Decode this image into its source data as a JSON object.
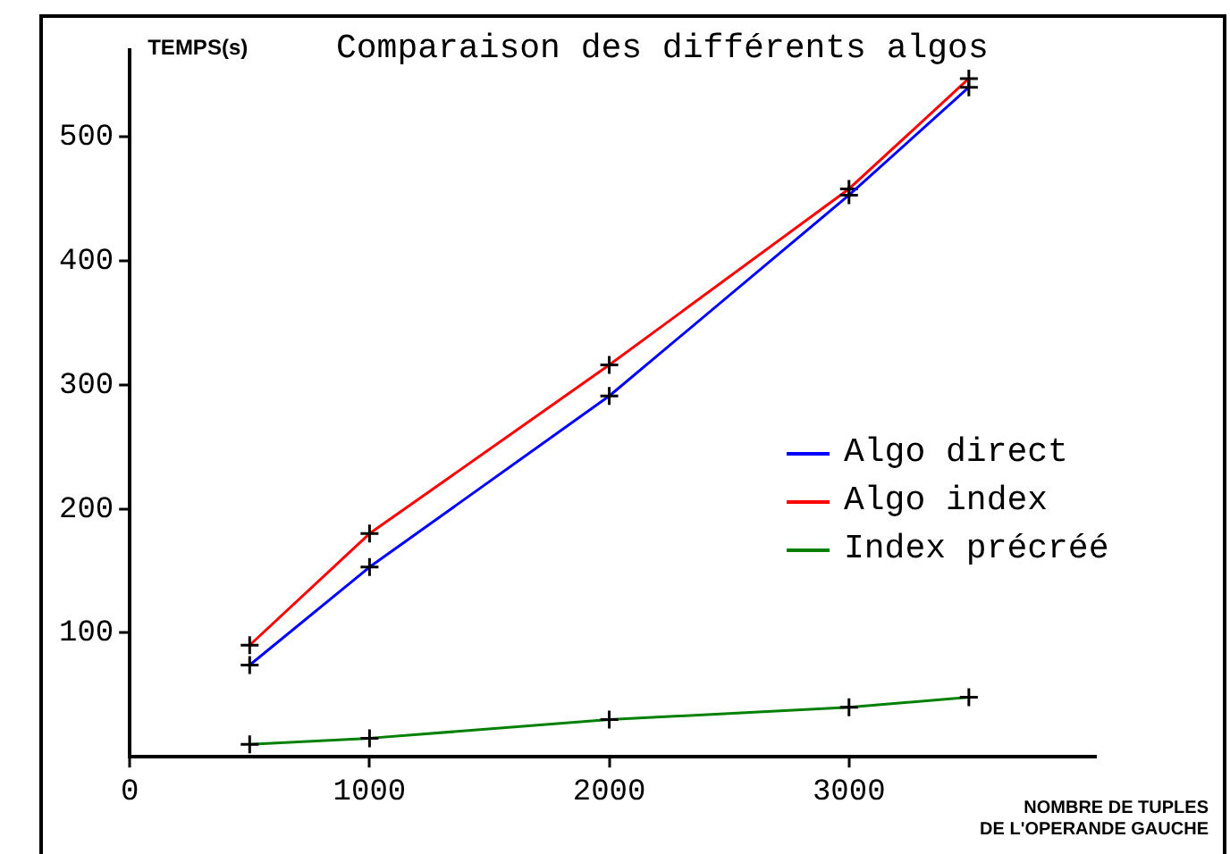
{
  "chart_data": {
    "type": "line",
    "title": "Comparaison des différents algos",
    "ylabel": "TEMPS(s)",
    "xlabel": "NOMBRE DE TUPLES\nDE L'OPERANDE GAUCHE",
    "x": [
      500,
      1000,
      2000,
      3000,
      3500
    ],
    "series": [
      {
        "name": "Algo direct",
        "color": "#0000ff",
        "values": [
          74,
          153,
          291,
          453,
          540
        ]
      },
      {
        "name": "Algo index",
        "color": "#ff0000",
        "values": [
          90,
          180,
          316,
          458,
          547
        ]
      },
      {
        "name": "Index précréé",
        "color": "#008000",
        "values": [
          10,
          15,
          30,
          40,
          48
        ]
      }
    ],
    "xlim": [
      0,
      4030
    ],
    "xticks": [
      0,
      1000,
      2000,
      3000
    ],
    "ylim": [
      0,
      570
    ],
    "yticks": [
      100,
      200,
      300,
      400,
      500
    ],
    "grid": false,
    "legend": "right",
    "marker": "cross",
    "line_style": "solid"
  }
}
